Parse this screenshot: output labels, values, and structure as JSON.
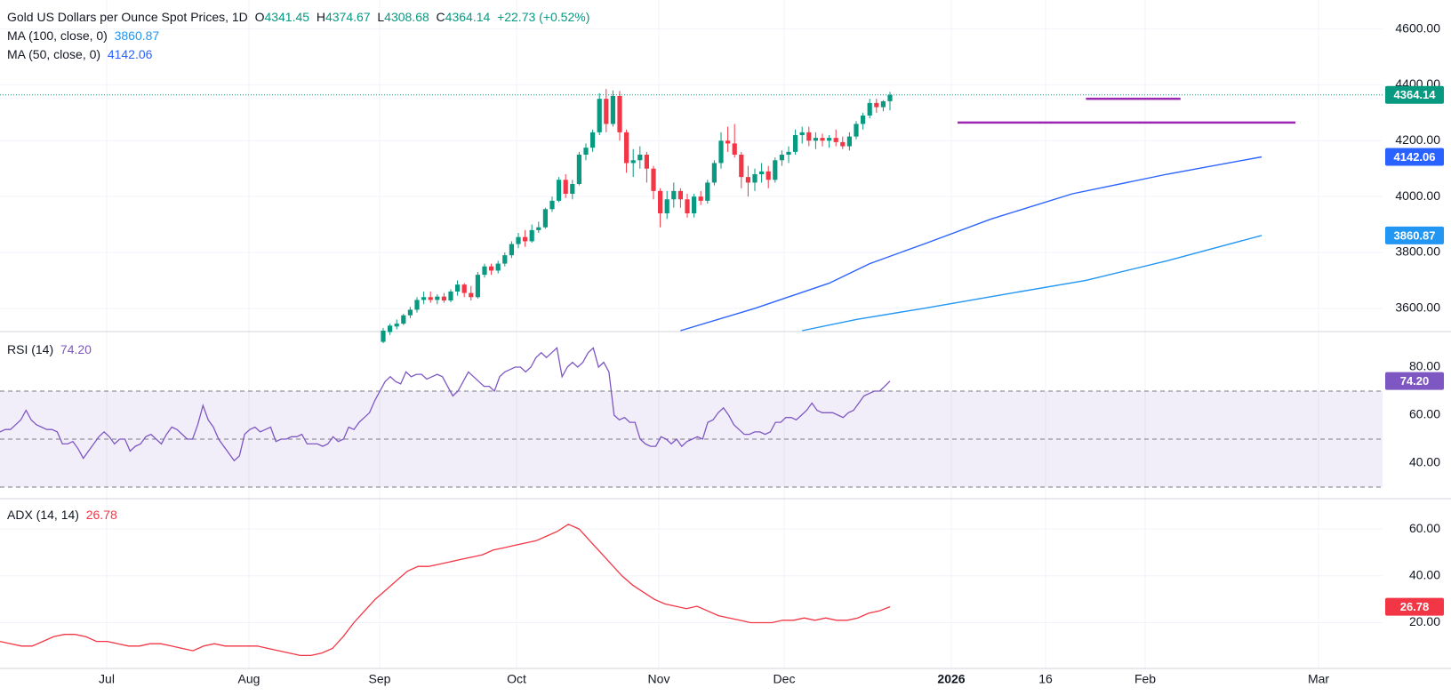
{
  "header": {
    "symbol_line": "Gold US Dollars per Ounce Spot Prices, 1D",
    "open_label": "O",
    "open": "4341.45",
    "high_label": "H",
    "high": "4374.67",
    "low_label": "L",
    "low": "4308.68",
    "close_label": "C",
    "close": "4364.14",
    "change": "+22.73 (+0.52%)",
    "ma100_label": "MA (100, close, 0)",
    "ma100_value": "3860.87",
    "ma50_label": "MA (50, close, 0)",
    "ma50_value": "4142.06"
  },
  "panes": {
    "rsi": {
      "label": "RSI (14)",
      "value": "74.20"
    },
    "adx": {
      "label": "ADX (14, 14)",
      "value": "26.78"
    }
  },
  "colors": {
    "up": "#089981",
    "down": "#f23645",
    "ma50": "#2962ff",
    "ma100": "#2196f3",
    "rsi": "#7e57c2",
    "adx": "#f23645",
    "lines": "#9c27b0",
    "price_badge": "#089981"
  },
  "chart_data": [
    {
      "type": "candlestick",
      "title": "Gold US Dollars per Ounce Spot Prices, 1D",
      "ylim": [
        3520,
        4640
      ],
      "y_ticks": [
        3600,
        3800,
        4000,
        4200,
        4400,
        4600
      ],
      "y_tick_labels": [
        "3600.00",
        "3800.00",
        "4000.00",
        "4200.00",
        "4400.00",
        "4600.00"
      ],
      "x_ticks": [
        "Jul",
        "Aug",
        "Sep",
        "Oct",
        "Nov",
        "Dec",
        "2026",
        "16",
        "Feb",
        "Mar"
      ],
      "last_price": 4364.14,
      "last_price_label": "4364.14",
      "candles_start": "2025-09-01",
      "candles": [
        [
          3480,
          3530,
          3475,
          3520
        ],
        [
          3515,
          3545,
          3505,
          3538
        ],
        [
          3535,
          3560,
          3525,
          3545
        ],
        [
          3545,
          3580,
          3540,
          3575
        ],
        [
          3575,
          3605,
          3565,
          3595
        ],
        [
          3595,
          3640,
          3585,
          3630
        ],
        [
          3630,
          3660,
          3615,
          3640
        ],
        [
          3640,
          3660,
          3620,
          3630
        ],
        [
          3630,
          3650,
          3615,
          3642
        ],
        [
          3642,
          3655,
          3620,
          3628
        ],
        [
          3628,
          3668,
          3622,
          3660
        ],
        [
          3660,
          3700,
          3645,
          3685
        ],
        [
          3685,
          3690,
          3640,
          3655
        ],
        [
          3655,
          3680,
          3628,
          3640
        ],
        [
          3640,
          3730,
          3635,
          3720
        ],
        [
          3720,
          3760,
          3710,
          3750
        ],
        [
          3750,
          3760,
          3720,
          3735
        ],
        [
          3735,
          3770,
          3725,
          3760
        ],
        [
          3760,
          3800,
          3750,
          3790
        ],
        [
          3790,
          3840,
          3780,
          3830
        ],
        [
          3830,
          3870,
          3815,
          3855
        ],
        [
          3855,
          3880,
          3820,
          3840
        ],
        [
          3840,
          3900,
          3835,
          3880
        ],
        [
          3880,
          3910,
          3870,
          3890
        ],
        [
          3890,
          3960,
          3885,
          3955
        ],
        [
          3955,
          4000,
          3945,
          3985
        ],
        [
          3985,
          4070,
          3980,
          4060
        ],
        [
          4060,
          4080,
          3995,
          4010
        ],
        [
          4010,
          4060,
          3990,
          4045
        ],
        [
          4045,
          4160,
          4040,
          4150
        ],
        [
          4150,
          4190,
          4130,
          4175
        ],
        [
          4175,
          4240,
          4160,
          4230
        ],
        [
          4230,
          4370,
          4220,
          4350
        ],
        [
          4350,
          4385,
          4230,
          4260
        ],
        [
          4260,
          4380,
          4250,
          4360
        ],
        [
          4360,
          4378,
          4200,
          4230
        ],
        [
          4230,
          4240,
          4085,
          4120
        ],
        [
          4120,
          4170,
          4070,
          4130
        ],
        [
          4130,
          4180,
          4100,
          4150
        ],
        [
          4150,
          4160,
          4050,
          4100
        ],
        [
          4100,
          4110,
          3990,
          4020
        ],
        [
          4020,
          4030,
          3890,
          3940
        ],
        [
          3940,
          4020,
          3920,
          3990
        ],
        [
          3990,
          4050,
          3960,
          4020
        ],
        [
          4020,
          4030,
          3960,
          3990
        ],
        [
          3990,
          4010,
          3925,
          3940
        ],
        [
          3940,
          4010,
          3925,
          4000
        ],
        [
          4000,
          4020,
          3970,
          3985
        ],
        [
          3985,
          4060,
          3975,
          4050
        ],
        [
          4050,
          4130,
          4040,
          4120
        ],
        [
          4120,
          4230,
          4100,
          4200
        ],
        [
          4200,
          4250,
          4160,
          4190
        ],
        [
          4190,
          4260,
          4140,
          4150
        ],
        [
          4150,
          4160,
          4030,
          4070
        ],
        [
          4070,
          4110,
          4000,
          4050
        ],
        [
          4050,
          4100,
          4020,
          4080
        ],
        [
          4080,
          4120,
          4050,
          4090
        ],
        [
          4090,
          4110,
          4030,
          4060
        ],
        [
          4060,
          4140,
          4050,
          4130
        ],
        [
          4130,
          4165,
          4110,
          4150
        ],
        [
          4150,
          4180,
          4120,
          4160
        ],
        [
          4160,
          4240,
          4150,
          4220
        ],
        [
          4220,
          4250,
          4190,
          4230
        ],
        [
          4230,
          4250,
          4180,
          4200
        ],
        [
          4200,
          4230,
          4170,
          4210
        ],
        [
          4210,
          4225,
          4180,
          4200
        ],
        [
          4200,
          4220,
          4175,
          4210
        ],
        [
          4210,
          4240,
          4180,
          4195
        ],
        [
          4195,
          4215,
          4170,
          4180
        ],
        [
          4180,
          4230,
          4165,
          4215
        ],
        [
          4215,
          4270,
          4205,
          4260
        ],
        [
          4260,
          4300,
          4240,
          4290
        ],
        [
          4290,
          4350,
          4280,
          4335
        ],
        [
          4335,
          4350,
          4300,
          4320
        ],
        [
          4320,
          4345,
          4305,
          4341
        ],
        [
          4341.45,
          4374.67,
          4308.68,
          4364.14
        ]
      ],
      "series": [
        {
          "name": "MA (50, close, 0)",
          "last": 4142.06,
          "points": [
            [
              44,
              3520
            ],
            [
              55,
              3600
            ],
            [
              66,
              3690
            ],
            [
              72,
              3760
            ],
            [
              80,
              3830
            ],
            [
              90,
              3920
            ],
            [
              102,
              4010
            ],
            [
              116,
              4080
            ],
            [
              130,
              4142.06
            ]
          ]
        },
        {
          "name": "MA (100, close, 0)",
          "last": 3860.87,
          "points": [
            [
              62,
              3520
            ],
            [
              70,
              3560
            ],
            [
              80,
              3600
            ],
            [
              92,
              3650
            ],
            [
              104,
              3700
            ],
            [
              116,
              3770
            ],
            [
              130,
              3860.87
            ]
          ]
        }
      ],
      "annotations": [
        {
          "type": "horizontal-line",
          "level": 4350,
          "from_bar": 104,
          "to_bar": 118
        },
        {
          "type": "horizontal-line",
          "level": 4265,
          "from_bar": 85,
          "to_bar": 135
        }
      ]
    },
    {
      "type": "line",
      "title": "RSI (14)",
      "ylim": [
        30,
        90
      ],
      "y_ticks": [
        40,
        60,
        80
      ],
      "y_tick_labels": [
        "40.00",
        "60.00",
        "80.00"
      ],
      "levels": [
        70,
        50,
        30
      ],
      "last_label": "74.20",
      "values": [
        53,
        54,
        54,
        56,
        58,
        62,
        58,
        56,
        55,
        54,
        54,
        53,
        48,
        48,
        49,
        46,
        42,
        45,
        48,
        51,
        53,
        51,
        48,
        50,
        50,
        45,
        47,
        48,
        51,
        52,
        50,
        48,
        52,
        55,
        54,
        52,
        50,
        50,
        56,
        64,
        58,
        55,
        50,
        47,
        44,
        41,
        43,
        52,
        54,
        55,
        53,
        54,
        55,
        49,
        50,
        50,
        51,
        51,
        52,
        48,
        48,
        48,
        47,
        48,
        51,
        49,
        50,
        55,
        54,
        57,
        59,
        61,
        66,
        70,
        74,
        76,
        74,
        73,
        78,
        76,
        77,
        77,
        75,
        76,
        77,
        76,
        72,
        68,
        70,
        74,
        78,
        76,
        74,
        72,
        72,
        70,
        76,
        78,
        79,
        80,
        80,
        78,
        80,
        84,
        86,
        84,
        86,
        88,
        76,
        80,
        82,
        80,
        82,
        86,
        88,
        80,
        82,
        78,
        60,
        58,
        59,
        57,
        57,
        50,
        48,
        47,
        47,
        51,
        50,
        48,
        50,
        47,
        49,
        50,
        51,
        50,
        57,
        58,
        61,
        63,
        60,
        56,
        54,
        52,
        52,
        53,
        53,
        52,
        53,
        57,
        57,
        59,
        59,
        58,
        60,
        62,
        65,
        62,
        61,
        61,
        61,
        60,
        59,
        61,
        62,
        65,
        68,
        69,
        70,
        70,
        72,
        74.2
      ]
    },
    {
      "type": "line",
      "title": "ADX (14, 14)",
      "ylim": [
        5,
        68
      ],
      "y_ticks": [
        20,
        40,
        60
      ],
      "y_tick_labels": [
        "20.00",
        "40.00",
        "60.00"
      ],
      "last_label": "26.78",
      "values": [
        12,
        11,
        10,
        10,
        12,
        14,
        15,
        15,
        14,
        12,
        12,
        11,
        10,
        10,
        11,
        11,
        10,
        9,
        8,
        10,
        11,
        10,
        10,
        10,
        10,
        9,
        8,
        7,
        6,
        6,
        7,
        9,
        14,
        20,
        25,
        30,
        34,
        38,
        42,
        44,
        44,
        45,
        46,
        47,
        48,
        49,
        51,
        52,
        53,
        54,
        55,
        57,
        59,
        62,
        60,
        55,
        50,
        45,
        40,
        36,
        33,
        30,
        28,
        27,
        26,
        27,
        25,
        23,
        22,
        21,
        20,
        20,
        20,
        21,
        21,
        22,
        21,
        22,
        21,
        21,
        22,
        24,
        25,
        26.78
      ]
    }
  ]
}
